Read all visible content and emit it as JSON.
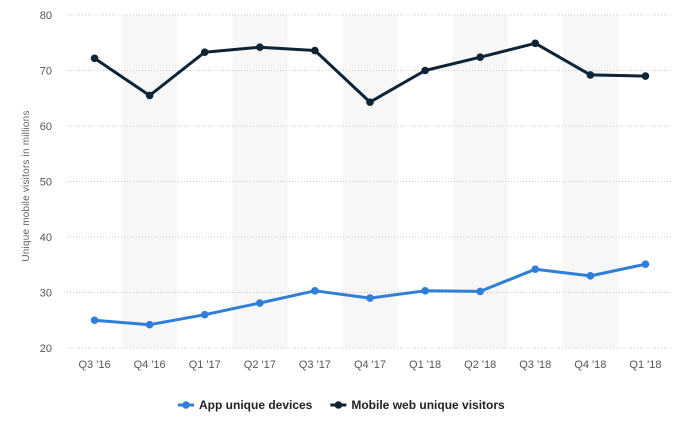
{
  "chart_data": {
    "type": "line",
    "categories": [
      "Q3 '16",
      "Q4 '16",
      "Q1 '17",
      "Q2 '17",
      "Q3 '17",
      "Q4 '17",
      "Q1 '18",
      "Q2 '18",
      "Q3 '18",
      "Q4 '18",
      "Q1 '18"
    ],
    "series": [
      {
        "name": "App unique devices",
        "color": "#2f7ed8",
        "values": [
          25.0,
          24.2,
          26.0,
          28.1,
          30.3,
          29.0,
          30.3,
          30.2,
          34.2,
          33.0,
          35.1
        ]
      },
      {
        "name": "Mobile web unique visitors",
        "color": "#0d2336",
        "values": [
          72.2,
          65.5,
          73.3,
          74.2,
          73.6,
          64.3,
          70.0,
          72.4,
          74.9,
          69.2,
          69.0
        ]
      }
    ],
    "title": "",
    "xlabel": "",
    "ylabel": "Unique mobile visitors in millions",
    "ylim": [
      20,
      80
    ],
    "yticks": [
      20,
      30,
      40,
      50,
      60,
      70,
      80
    ],
    "grid": true,
    "legend_position": "bottom"
  }
}
